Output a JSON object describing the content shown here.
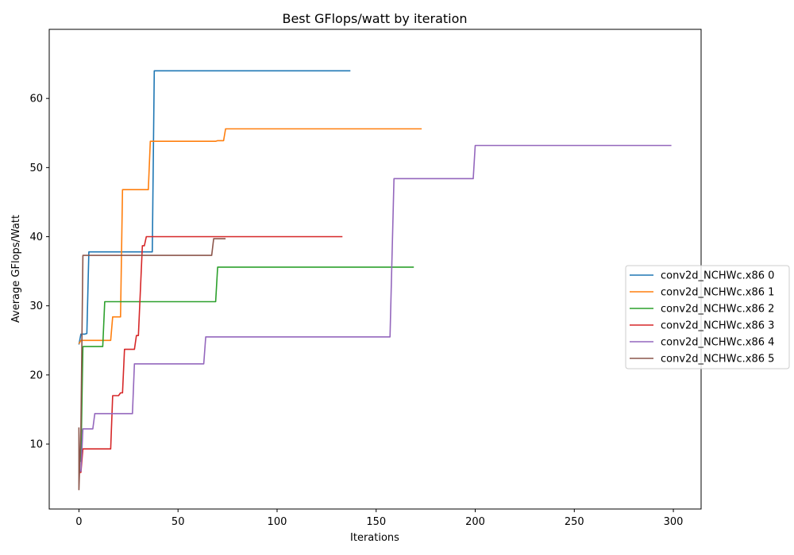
{
  "chart_data": {
    "type": "line",
    "title": "Best GFlops/watt by iteration",
    "xlabel": "Iterations",
    "ylabel": "Average GFlops/Watt",
    "xlim": [
      -15,
      314
    ],
    "ylim": [
      0.6,
      70.0
    ],
    "xticks": [
      0,
      50,
      100,
      150,
      200,
      250,
      300
    ],
    "yticks": [
      10,
      20,
      30,
      40,
      50,
      60
    ],
    "legend_position": "center-right",
    "grid": false,
    "series": [
      {
        "name": "conv2d_NCHWc.x86 0",
        "color": "#1f77b4",
        "points": [
          [
            0,
            24.4
          ],
          [
            1,
            25.9
          ],
          [
            2,
            25.9
          ],
          [
            3,
            25.9
          ],
          [
            4,
            26.0
          ],
          [
            5,
            37.8
          ],
          [
            36,
            37.8
          ],
          [
            37,
            37.8
          ],
          [
            38,
            64.0
          ],
          [
            137,
            64.0
          ]
        ]
      },
      {
        "name": "conv2d_NCHWc.x86 1",
        "color": "#ff7f0e",
        "points": [
          [
            0,
            24.5
          ],
          [
            1,
            25.0
          ],
          [
            15,
            25.0
          ],
          [
            16,
            25.0
          ],
          [
            17,
            28.4
          ],
          [
            21,
            28.4
          ],
          [
            22,
            46.8
          ],
          [
            35,
            46.8
          ],
          [
            36,
            53.8
          ],
          [
            69,
            53.8
          ],
          [
            70,
            53.9
          ],
          [
            73,
            53.9
          ],
          [
            74,
            55.6
          ],
          [
            173,
            55.6
          ]
        ]
      },
      {
        "name": "conv2d_NCHWc.x86 2",
        "color": "#2ca02c",
        "points": [
          [
            0,
            7.5
          ],
          [
            1,
            7.5
          ],
          [
            2,
            24.1
          ],
          [
            12,
            24.1
          ],
          [
            13,
            30.6
          ],
          [
            69,
            30.6
          ],
          [
            70,
            35.6
          ],
          [
            169,
            35.6
          ]
        ]
      },
      {
        "name": "conv2d_NCHWc.x86 3",
        "color": "#d62728",
        "points": [
          [
            0,
            5.9
          ],
          [
            1,
            5.9
          ],
          [
            2,
            9.3
          ],
          [
            16,
            9.3
          ],
          [
            17,
            17.0
          ],
          [
            20,
            17.0
          ],
          [
            21,
            17.4
          ],
          [
            22,
            17.4
          ],
          [
            23,
            23.7
          ],
          [
            28,
            23.7
          ],
          [
            29,
            25.7
          ],
          [
            30,
            25.7
          ],
          [
            32,
            38.7
          ],
          [
            33,
            38.7
          ],
          [
            34,
            40.0
          ],
          [
            133,
            40.0
          ]
        ]
      },
      {
        "name": "conv2d_NCHWc.x86 4",
        "color": "#9467bd",
        "points": [
          [
            0,
            6.1
          ],
          [
            1,
            6.1
          ],
          [
            2,
            12.2
          ],
          [
            7,
            12.2
          ],
          [
            8,
            14.4
          ],
          [
            27,
            14.4
          ],
          [
            28,
            21.6
          ],
          [
            63,
            21.6
          ],
          [
            64,
            25.5
          ],
          [
            157,
            25.5
          ],
          [
            159,
            48.4
          ],
          [
            199,
            48.4
          ],
          [
            200,
            53.2
          ],
          [
            299,
            53.2
          ]
        ]
      },
      {
        "name": "conv2d_NCHWc.x86 5",
        "color": "#8c564b",
        "points": [
          [
            0,
            12.4
          ],
          [
            0,
            3.4
          ],
          [
            1,
            12.3
          ],
          [
            2,
            37.3
          ],
          [
            67,
            37.3
          ],
          [
            68,
            39.7
          ],
          [
            74,
            39.7
          ]
        ]
      }
    ]
  }
}
